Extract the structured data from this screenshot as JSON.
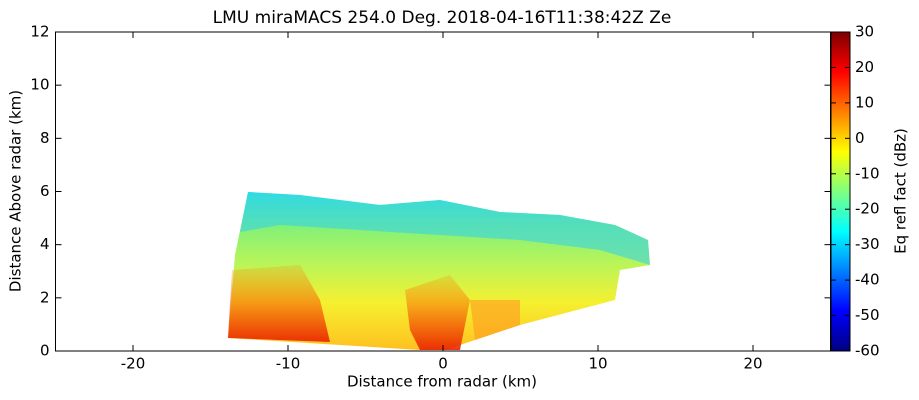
{
  "chart_data": {
    "type": "rhi",
    "title": "LMU miraMACS 254.0 Deg. 2018-04-16T11:38:42Z  Ze",
    "xlabel": "Distance from radar (km)",
    "ylabel": "Distance Above radar  (km)",
    "xlim": [
      -25,
      25
    ],
    "xticks": [
      -20,
      -10,
      0,
      10,
      20
    ],
    "ylim": [
      0,
      12
    ],
    "yticks": [
      0,
      2,
      4,
      6,
      8,
      10,
      12
    ],
    "colorbar": {
      "label": "Eq refl fact (dBz)",
      "colormap": "jet",
      "lim": [
        -60,
        30
      ],
      "ticks": [
        -60,
        -50,
        -40,
        -30,
        -20,
        -10,
        0,
        10,
        20,
        30
      ]
    }
  }
}
